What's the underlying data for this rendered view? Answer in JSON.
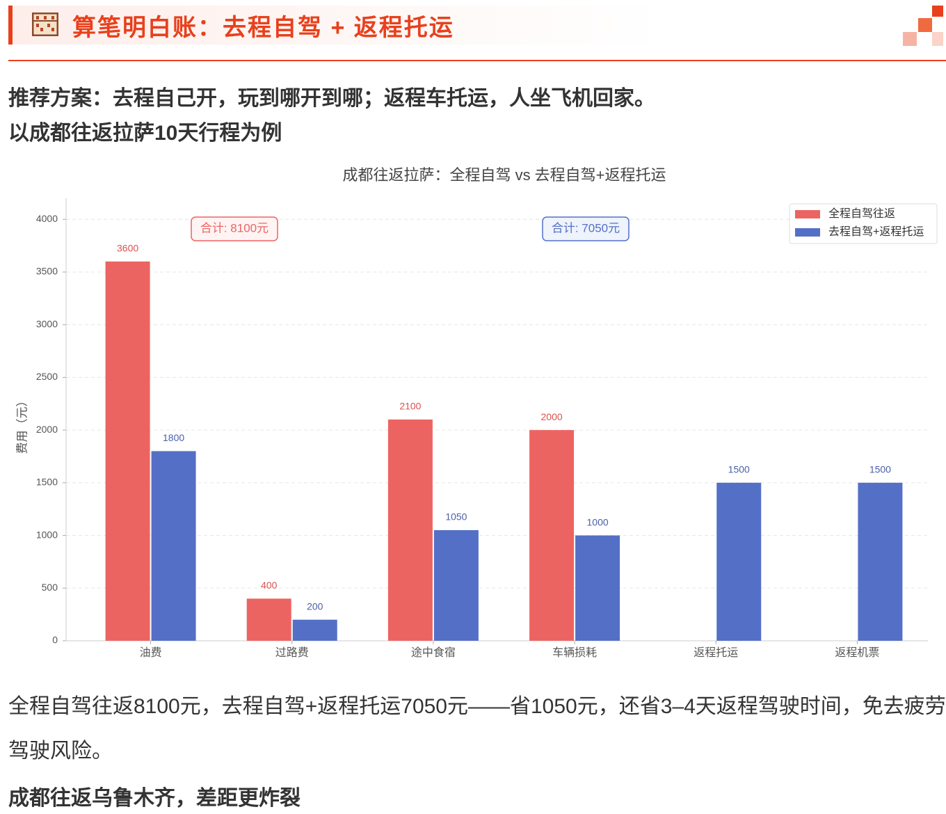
{
  "header": {
    "title": "算笔明白账：去程自驾 + 返程托运"
  },
  "intro": [
    "推荐方案：去程自己开，玩到哪开到哪；返程车托运，人坐飞机回家。",
    "以成都往返拉萨10天行程为例"
  ],
  "chart_data": {
    "type": "bar",
    "title": "成都往返拉萨：全程自驾 vs 去程自驾+返程托运",
    "ylabel": "费用（元）",
    "categories": [
      "油费",
      "过路费",
      "途中食宿",
      "车辆损耗",
      "返程托运",
      "返程机票"
    ],
    "series": [
      {
        "name": "全程自驾往返",
        "color": "#ec6462",
        "values": [
          3600,
          400,
          2100,
          2000,
          0,
          0
        ]
      },
      {
        "name": "去程自驾+返程托运",
        "color": "#5470c6",
        "values": [
          1800,
          200,
          1050,
          1000,
          1500,
          1500
        ]
      }
    ],
    "annotations": [
      "合计: 8100元",
      "合计: 7050元"
    ],
    "ylim": [
      0,
      4200
    ],
    "yticks": [
      0,
      500,
      1000,
      1500,
      2000,
      2500,
      3000,
      3500,
      4000
    ],
    "grid": true,
    "legend": "upper right"
  },
  "conclusion": [
    "全程自驾往返8100元，去程自驾+返程托运7050元——省1050元，还省3–4天返程驾驶时间，免去疲劳驾驶风险。",
    "成都往返乌鲁木齐，差距更炸裂"
  ]
}
